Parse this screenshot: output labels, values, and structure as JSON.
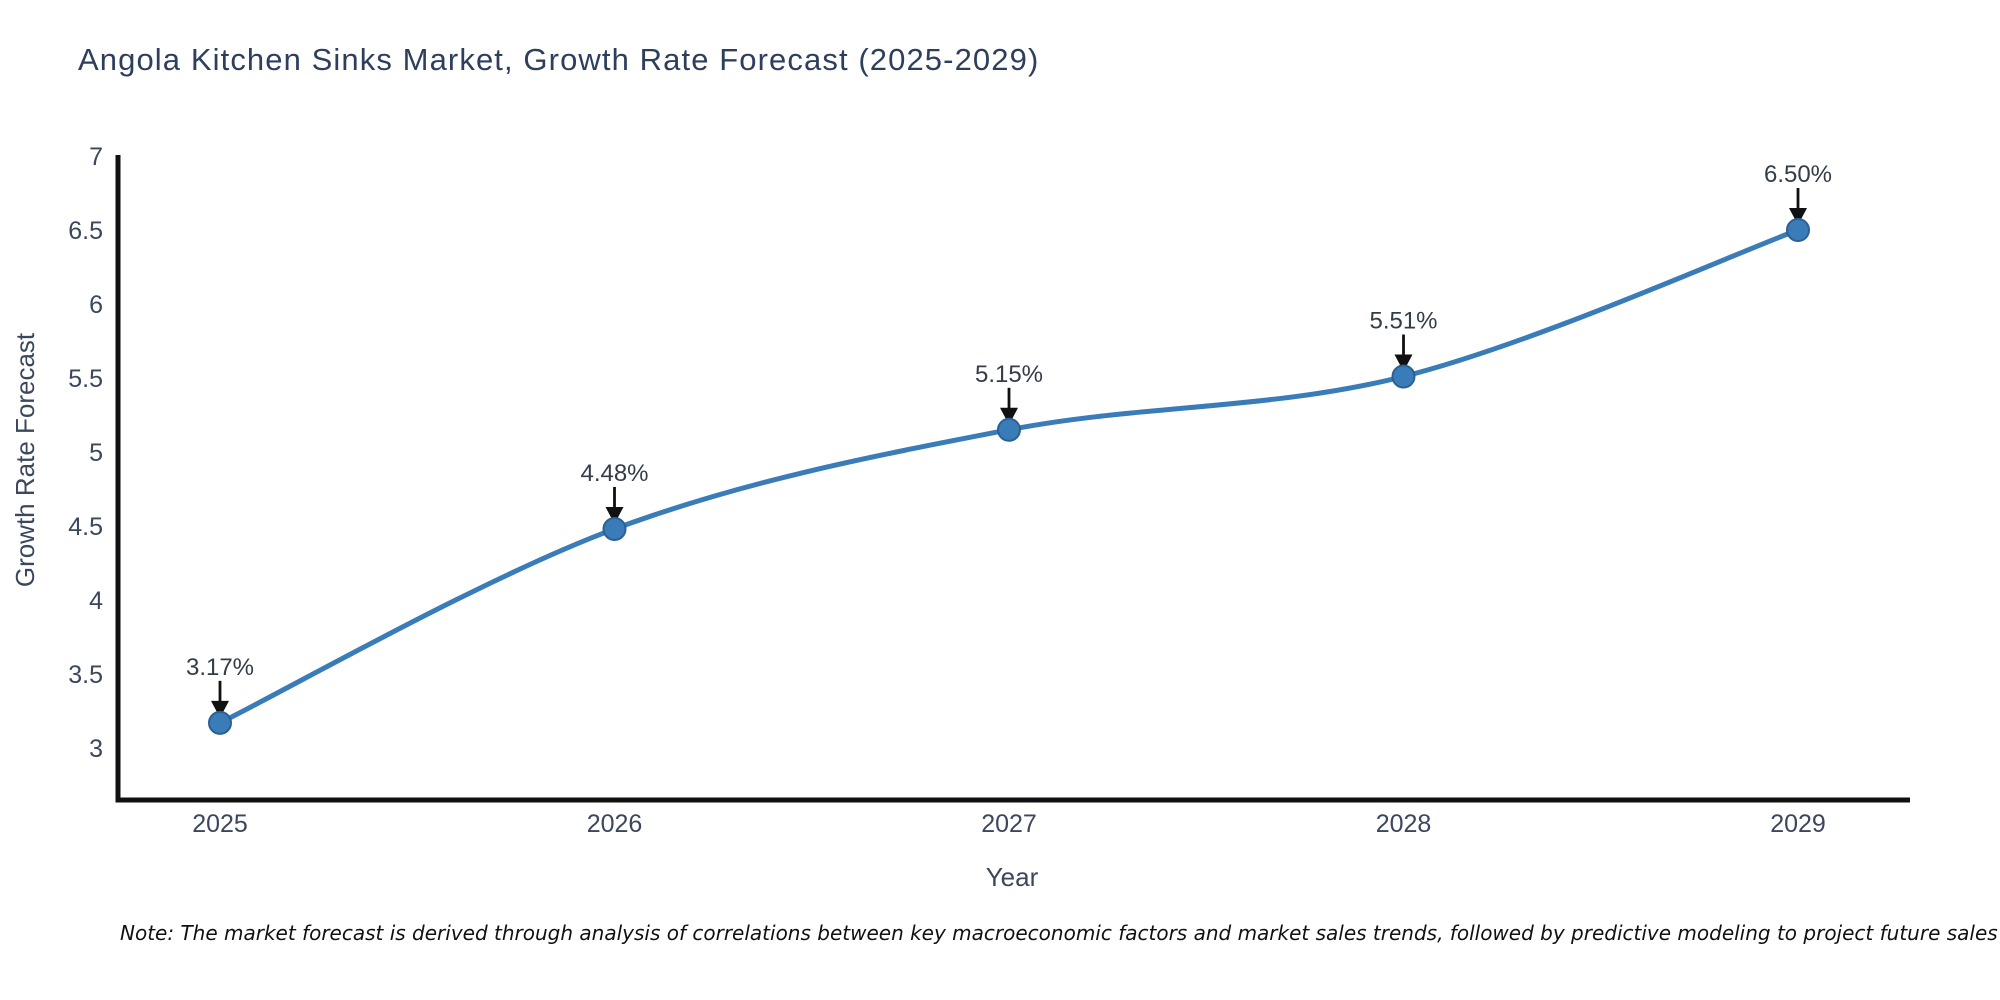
{
  "title": "Angola Kitchen Sinks Market, Growth Rate Forecast (2025-2029)",
  "note": "Note: The market forecast is derived through analysis of correlations between key macroeconomic factors and market sales trends, followed by predictive modeling to project future sales",
  "chart_data": {
    "type": "line",
    "title": "Angola Kitchen Sinks Market, Growth Rate Forecast (2025-2029)",
    "categories": [
      "2025",
      "2026",
      "2027",
      "2028",
      "2029"
    ],
    "values": [
      3.17,
      4.48,
      5.15,
      5.51,
      6.5
    ],
    "point_labels": [
      "3.17%",
      "4.48%",
      "5.15%",
      "5.51%",
      "6.50%"
    ],
    "xlabel": "Year",
    "ylabel": "Growth Rate Forecast",
    "ylim": [
      2.65,
      7.0
    ],
    "yticks": [
      3,
      3.5,
      4,
      4.5,
      5,
      5.5,
      6,
      6.5,
      7
    ],
    "grid": false,
    "legend": "none",
    "smoothing": "spline",
    "colors": {
      "line": "#3a7cb8",
      "marker_fill": "#3a7cb8",
      "marker_edge": "#2a6094",
      "axis": "#111111",
      "arrow": "#111111",
      "tick_text": "#3b475c",
      "title_text": "#2e3f5c",
      "note_text": "#111111"
    }
  }
}
